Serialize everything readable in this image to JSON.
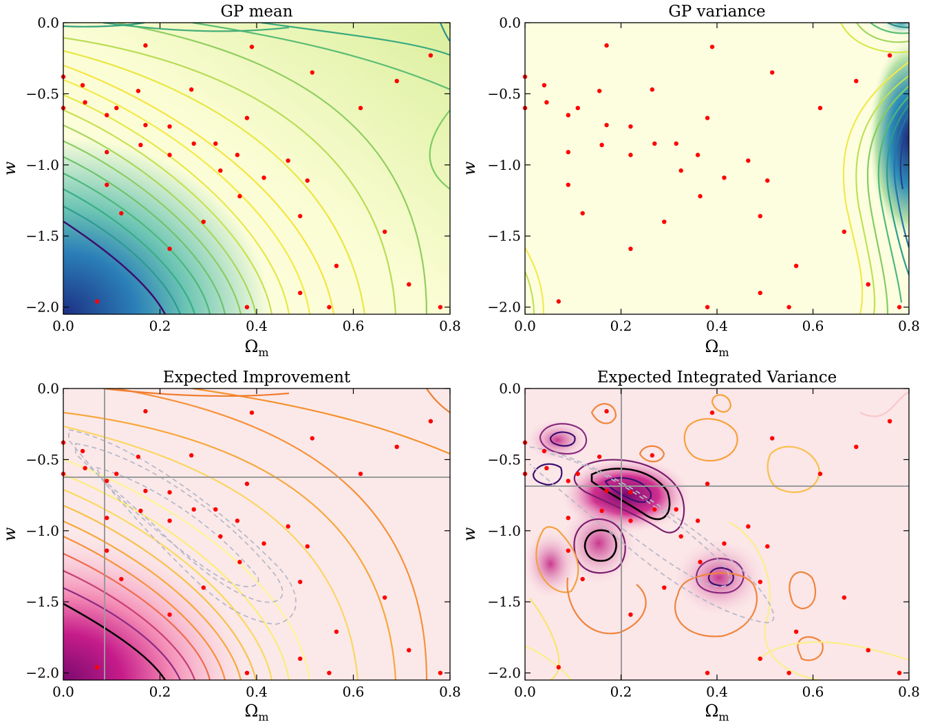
{
  "colors": {
    "points": "#ff0000",
    "crosshair": "#9a9a9a",
    "dashed": "#b8b8c8",
    "gp_mean_bg": "#f3f8d0",
    "gp_mean_contour": "#7fcf6a",
    "gp_var_bg": "#fdfee0",
    "ei_bg": "#fbe9e9",
    "eiv_bg": "#f8d8de",
    "contour_orange": "#f5a623",
    "contour_purple": "#9a2b78"
  },
  "chart_data": [
    {
      "type": "contour",
      "title": "GP mean",
      "xlabel": "Ωm",
      "ylabel": "w",
      "xlim": [
        0.0,
        0.8
      ],
      "ylim": [
        -2.05,
        0.0
      ],
      "xticks": [
        "0.0",
        "0.2",
        "0.4",
        "0.6",
        "0.8"
      ],
      "yticks": [
        "0.0",
        "−0.5",
        "−1.0",
        "−1.5",
        "−2.0"
      ],
      "colormap": "YlGnBu"
    },
    {
      "type": "contour",
      "title": "GP variance",
      "xlabel": "Ωm",
      "ylabel": "w",
      "xlim": [
        0.0,
        0.8
      ],
      "ylim": [
        -2.05,
        0.0
      ],
      "xticks": [
        "0.0",
        "0.2",
        "0.4",
        "0.6",
        "0.8"
      ],
      "yticks": [
        "0.0",
        "−0.5",
        "−1.0",
        "−1.5",
        "−2.0"
      ],
      "colormap": "YlGnBu"
    },
    {
      "type": "contour",
      "title": "Expected Improvement",
      "xlabel": "Ωm",
      "ylabel": "w",
      "xlim": [
        0.0,
        0.8
      ],
      "ylim": [
        -2.05,
        0.0
      ],
      "xticks": [
        "0.0",
        "0.2",
        "0.4",
        "0.6",
        "0.8"
      ],
      "yticks": [
        "0.0",
        "−0.5",
        "−1.0",
        "−1.5",
        "−2.0"
      ],
      "colormap": "RdPu",
      "crosshair": {
        "x": 0.085,
        "y": -0.63
      }
    },
    {
      "type": "contour",
      "title": "Expected Integrated Variance",
      "xlabel": "Ωm",
      "ylabel": "w",
      "xlim": [
        0.0,
        0.8
      ],
      "ylim": [
        -2.05,
        0.0
      ],
      "xticks": [
        "0.0",
        "0.2",
        "0.4",
        "0.6",
        "0.8"
      ],
      "yticks": [
        "0.0",
        "−0.5",
        "−1.0",
        "−1.5",
        "−2.0"
      ],
      "colormap": "RdPu",
      "crosshair": {
        "x": 0.2,
        "y": -0.7
      }
    }
  ],
  "training_points": [
    [
      0.0,
      -0.38
    ],
    [
      0.0,
      -0.6
    ],
    [
      0.04,
      -0.44
    ],
    [
      0.045,
      -0.56
    ],
    [
      0.07,
      -1.96
    ],
    [
      0.09,
      -0.65
    ],
    [
      0.09,
      -0.91
    ],
    [
      0.09,
      -1.14
    ],
    [
      0.11,
      -0.6
    ],
    [
      0.12,
      -1.34
    ],
    [
      0.155,
      -0.48
    ],
    [
      0.16,
      -0.86
    ],
    [
      0.17,
      -0.72
    ],
    [
      0.17,
      -0.16
    ],
    [
      0.22,
      -0.73
    ],
    [
      0.22,
      -0.93
    ],
    [
      0.22,
      -1.59
    ],
    [
      0.265,
      -0.47
    ],
    [
      0.27,
      -0.85
    ],
    [
      0.29,
      -1.4
    ],
    [
      0.315,
      -0.85
    ],
    [
      0.325,
      -1.04
    ],
    [
      0.36,
      -0.93
    ],
    [
      0.365,
      -1.22
    ],
    [
      0.38,
      -0.67
    ],
    [
      0.38,
      -2.0
    ],
    [
      0.39,
      -0.17
    ],
    [
      0.415,
      -1.09
    ],
    [
      0.465,
      -0.97
    ],
    [
      0.49,
      -1.36
    ],
    [
      0.49,
      -1.9
    ],
    [
      0.505,
      -1.11
    ],
    [
      0.515,
      -0.35
    ],
    [
      0.55,
      -2.0
    ],
    [
      0.565,
      -1.71
    ],
    [
      0.615,
      -0.6
    ],
    [
      0.665,
      -1.47
    ],
    [
      0.69,
      -0.41
    ],
    [
      0.715,
      -1.84
    ],
    [
      0.76,
      -0.23
    ],
    [
      0.78,
      -2.0
    ]
  ]
}
